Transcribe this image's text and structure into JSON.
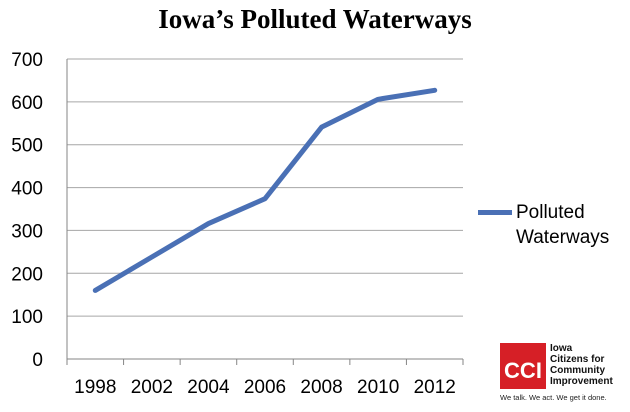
{
  "chart_data": {
    "type": "line",
    "title": "Iowa’s Polluted Waterways",
    "categories": [
      "1998",
      "2002",
      "2004",
      "2006",
      "2008",
      "2010",
      "2012"
    ],
    "series": [
      {
        "name": "Polluted Waterways",
        "values": [
          160,
          238,
          316,
          374,
          541,
          606,
          627
        ],
        "color": "#4A70B5"
      }
    ],
    "ylim": [
      0,
      700
    ],
    "yticks": [
      0,
      100,
      200,
      300,
      400,
      500,
      600,
      700
    ],
    "grid": true,
    "legend": "right"
  },
  "logo": {
    "mark": "CCI",
    "name_lines": [
      "Iowa",
      "Citizens for",
      "Community",
      "Improvement"
    ],
    "tagline": "We talk. We act. We get it done."
  }
}
